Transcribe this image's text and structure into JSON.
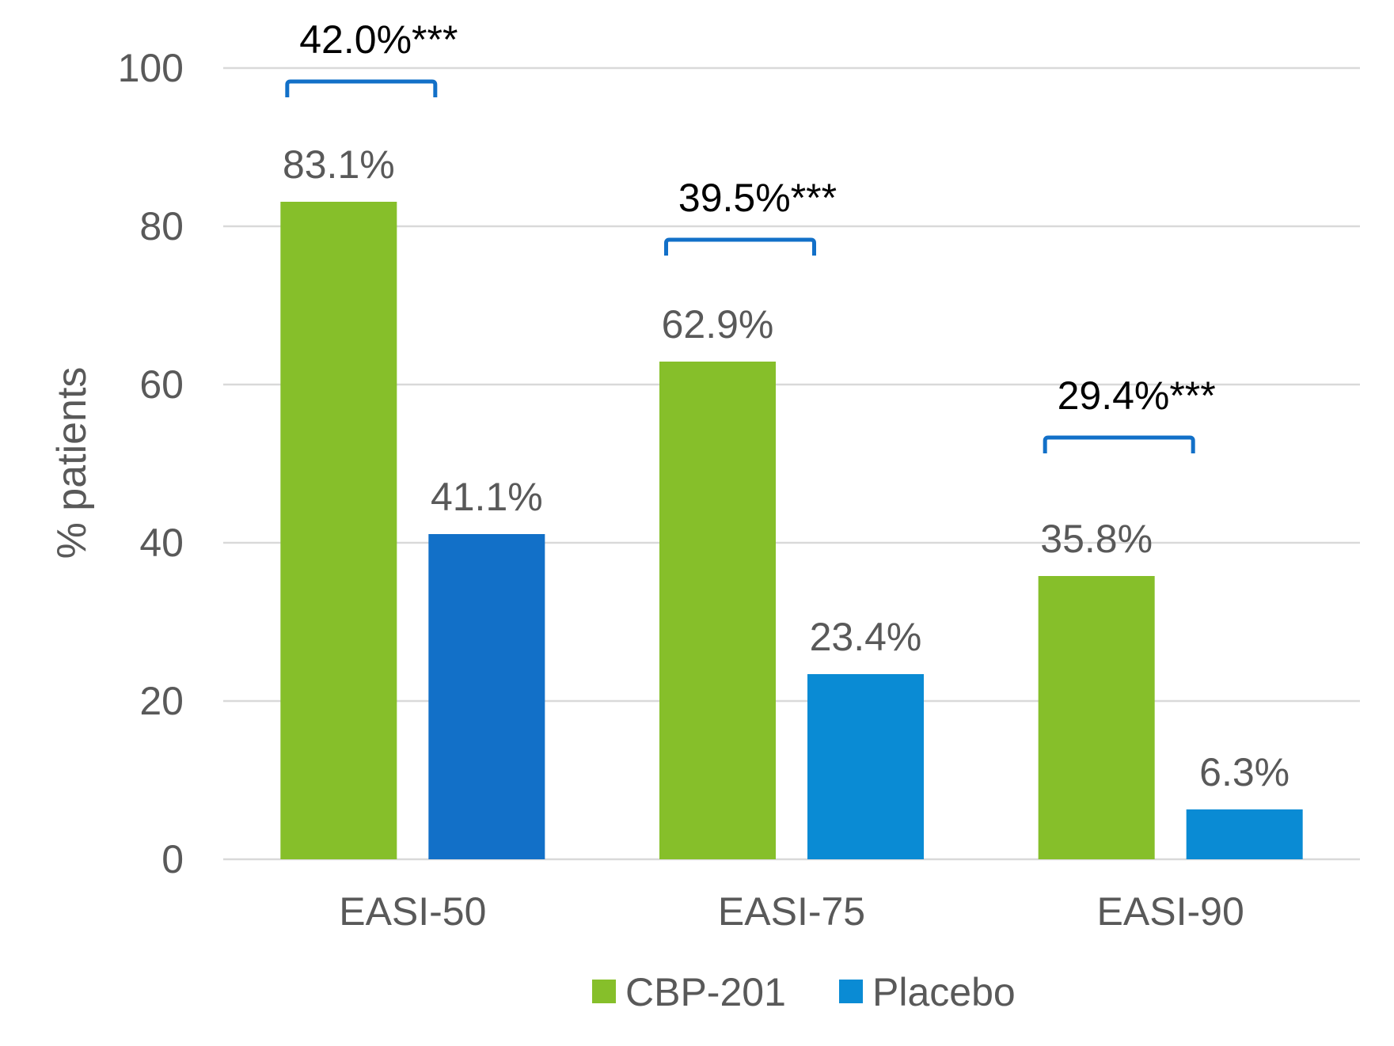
{
  "chart_data": {
    "type": "bar",
    "categories": [
      "EASI-50",
      "EASI-75",
      "EASI-90"
    ],
    "series": [
      {
        "name": "CBP-201",
        "values": [
          83.1,
          62.9,
          35.8
        ],
        "labels": [
          "83.1%",
          "62.9%",
          "35.8%"
        ],
        "colors": [
          "#86bf2a",
          "#86bf2a",
          "#86bf2a"
        ]
      },
      {
        "name": "Placebo",
        "values": [
          41.1,
          23.4,
          6.3
        ],
        "labels": [
          "41.1%",
          "23.4%",
          "6.3%"
        ],
        "colors": [
          "#1270c8",
          "#0a8bd4",
          "#0a8bd4"
        ]
      }
    ],
    "differences": [
      {
        "category": "EASI-50",
        "label": "42.0%***",
        "bracket_level": 98.3
      },
      {
        "category": "EASI-75",
        "label": "39.5%***",
        "bracket_level": 78.3
      },
      {
        "category": "EASI-90",
        "label": "29.4%***",
        "bracket_level": 53.3
      }
    ],
    "title": "",
    "xlabel": "",
    "ylabel": "% patients",
    "ylim": [
      0,
      100
    ],
    "yticks": [
      0,
      20,
      40,
      60,
      80,
      100
    ],
    "grid": true,
    "legend": {
      "placement": "bottom-center",
      "entries": [
        {
          "name": "CBP-201",
          "color": "#86bf2a"
        },
        {
          "name": "Placebo",
          "color": "#0a8bd4"
        }
      ]
    },
    "bracket_color": "#1270c8"
  }
}
